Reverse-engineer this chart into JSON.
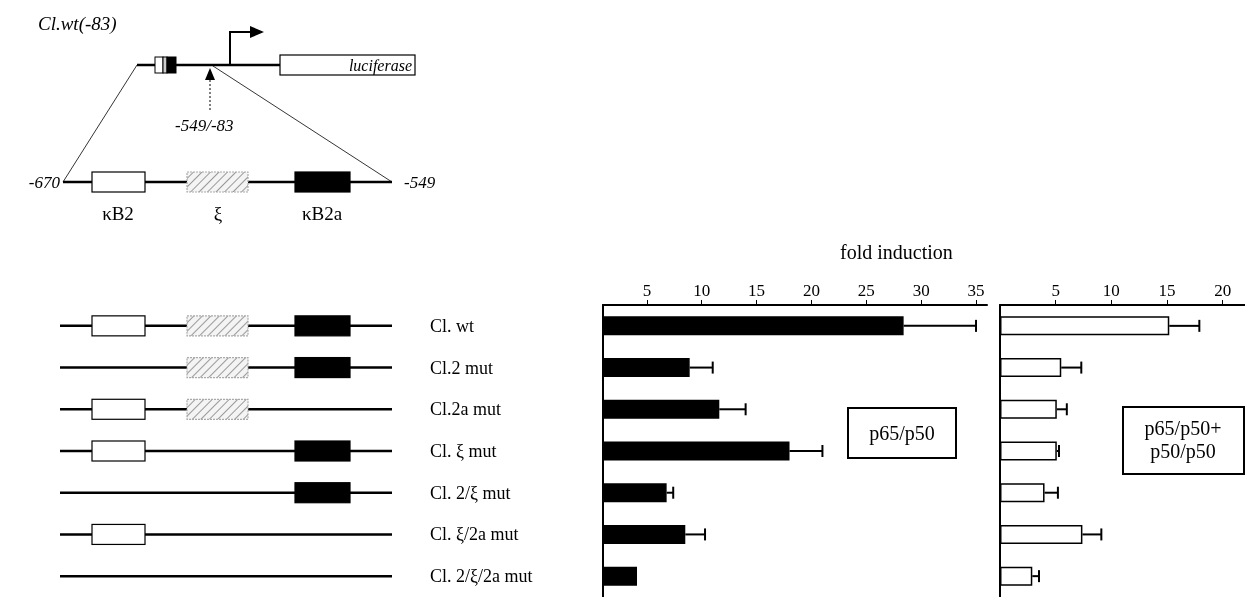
{
  "chart_data": [
    {
      "type": "bar",
      "orientation": "horizontal",
      "xlabel": "fold induction",
      "categories": [
        "Cl. wt",
        "Cl.2 mut",
        "Cl.2a mut",
        "Cl. ξ mut",
        "Cl. 2/ξ mut",
        "Cl. ξ/2a mut",
        "Cl. 2/ξ/2a mut"
      ],
      "values": [
        28.4,
        8.9,
        11.6,
        18.0,
        6.8,
        8.5,
        4.1
      ],
      "errors": [
        6.6,
        2.1,
        2.4,
        3.0,
        0.6,
        1.8,
        null
      ],
      "color": "#000000",
      "xlim": [
        1,
        36
      ],
      "xticks": [
        5,
        10,
        15,
        20,
        25,
        30,
        35
      ],
      "annotations": [
        "p65/p50",
        "Cl.wt(-83)",
        "luciferase",
        "-549/-83",
        "-670",
        "-549",
        "κB2",
        "ξ",
        "κB2a"
      ]
    },
    {
      "type": "bar",
      "orientation": "horizontal",
      "categories": [
        null,
        null,
        null,
        null,
        null,
        null,
        null
      ],
      "values": [
        15.2,
        5.5,
        5.1,
        5.1,
        4.0,
        7.4,
        2.9
      ],
      "errors": [
        2.7,
        1.8,
        0.9,
        0.2,
        1.2,
        1.7,
        0.6
      ],
      "color": "#ffffff",
      "xlim": [
        0,
        22
      ],
      "xticks": [
        5,
        10,
        15,
        20
      ],
      "tick_labels": "x",
      "annotations": [
        "p65/p50+\np50/p50"
      ]
    }
  ]
}
